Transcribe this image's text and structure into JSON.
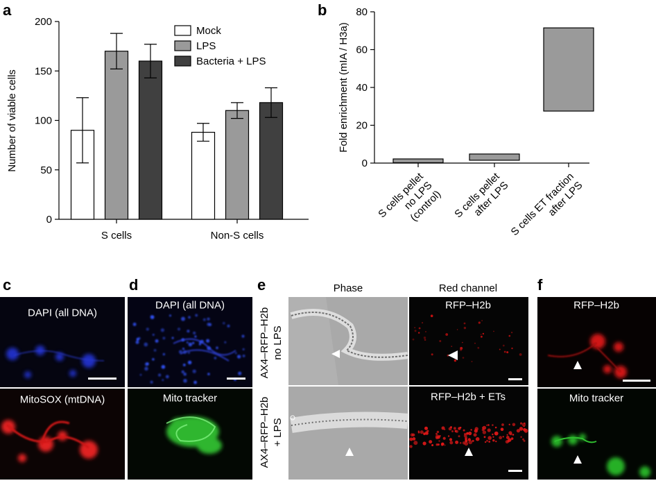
{
  "panels": {
    "a": "a",
    "b": "b",
    "c": "c",
    "d": "d",
    "e": "e",
    "f": "f"
  },
  "chart_data": [
    {
      "panel": "a",
      "type": "bar",
      "categories": [
        "S cells",
        "Non-S cells"
      ],
      "series": [
        {
          "name": "Mock",
          "values": [
            90,
            88
          ],
          "errors": [
            33,
            9
          ],
          "color": "#ffffff"
        },
        {
          "name": "LPS",
          "values": [
            170,
            110
          ],
          "errors": [
            18,
            8
          ],
          "color": "#9a9a9a"
        },
        {
          "name": "Bacteria + LPS",
          "values": [
            160,
            118
          ],
          "errors": [
            17,
            15
          ],
          "color": "#404040"
        }
      ],
      "xlabel": "",
      "ylabel": "Number of viable cells",
      "ylim": [
        0,
        200
      ],
      "yticks": [
        "0",
        "50",
        "100",
        "150",
        "200"
      ],
      "legend": "top-right",
      "grid": false
    },
    {
      "panel": "b",
      "type": "bar",
      "categories": [
        "S cells pellet\nno LPS\n(control)",
        "S cells pellet\nafter LPS",
        "S cells ET fraction\nafter LPS"
      ],
      "ranges": [
        [
          0.2,
          2.2
        ],
        [
          1.5,
          4.8
        ],
        [
          27.5,
          71.5
        ]
      ],
      "color": "#9a9a9a",
      "xlabel": "",
      "ylabel": "Fold enrichment (mIA / H3a)",
      "ylim": [
        0,
        80
      ],
      "yticks": [
        "0",
        "20",
        "40",
        "60",
        "80"
      ],
      "grid": false
    }
  ],
  "micrographs": {
    "c": {
      "top_label": "DAPI (all DNA)",
      "bottom_label": "MitoSOX (mtDNA)"
    },
    "d": {
      "top_label": "DAPI (all DNA)",
      "bottom_label": "Mito tracker"
    },
    "e": {
      "col_phase": "Phase",
      "col_red": "Red channel",
      "row1_title_line1": "AX4–RFP–H2b",
      "row1_title_line2": "no LPS",
      "row2_title_line1": "AX4–RFP–H2b",
      "row2_title_line2": "+ LPS",
      "red_top_label": "RFP–H2b",
      "red_bottom_label": "RFP–H2b + ETs"
    },
    "f": {
      "top_label": "RFP–H2b",
      "bottom_label": "Mito tracker"
    }
  },
  "colors": {
    "blue_stain": "#2b3fd8",
    "red_stain": "#e02020",
    "green_stain": "#35c035",
    "dark_bg": "#06060c"
  }
}
